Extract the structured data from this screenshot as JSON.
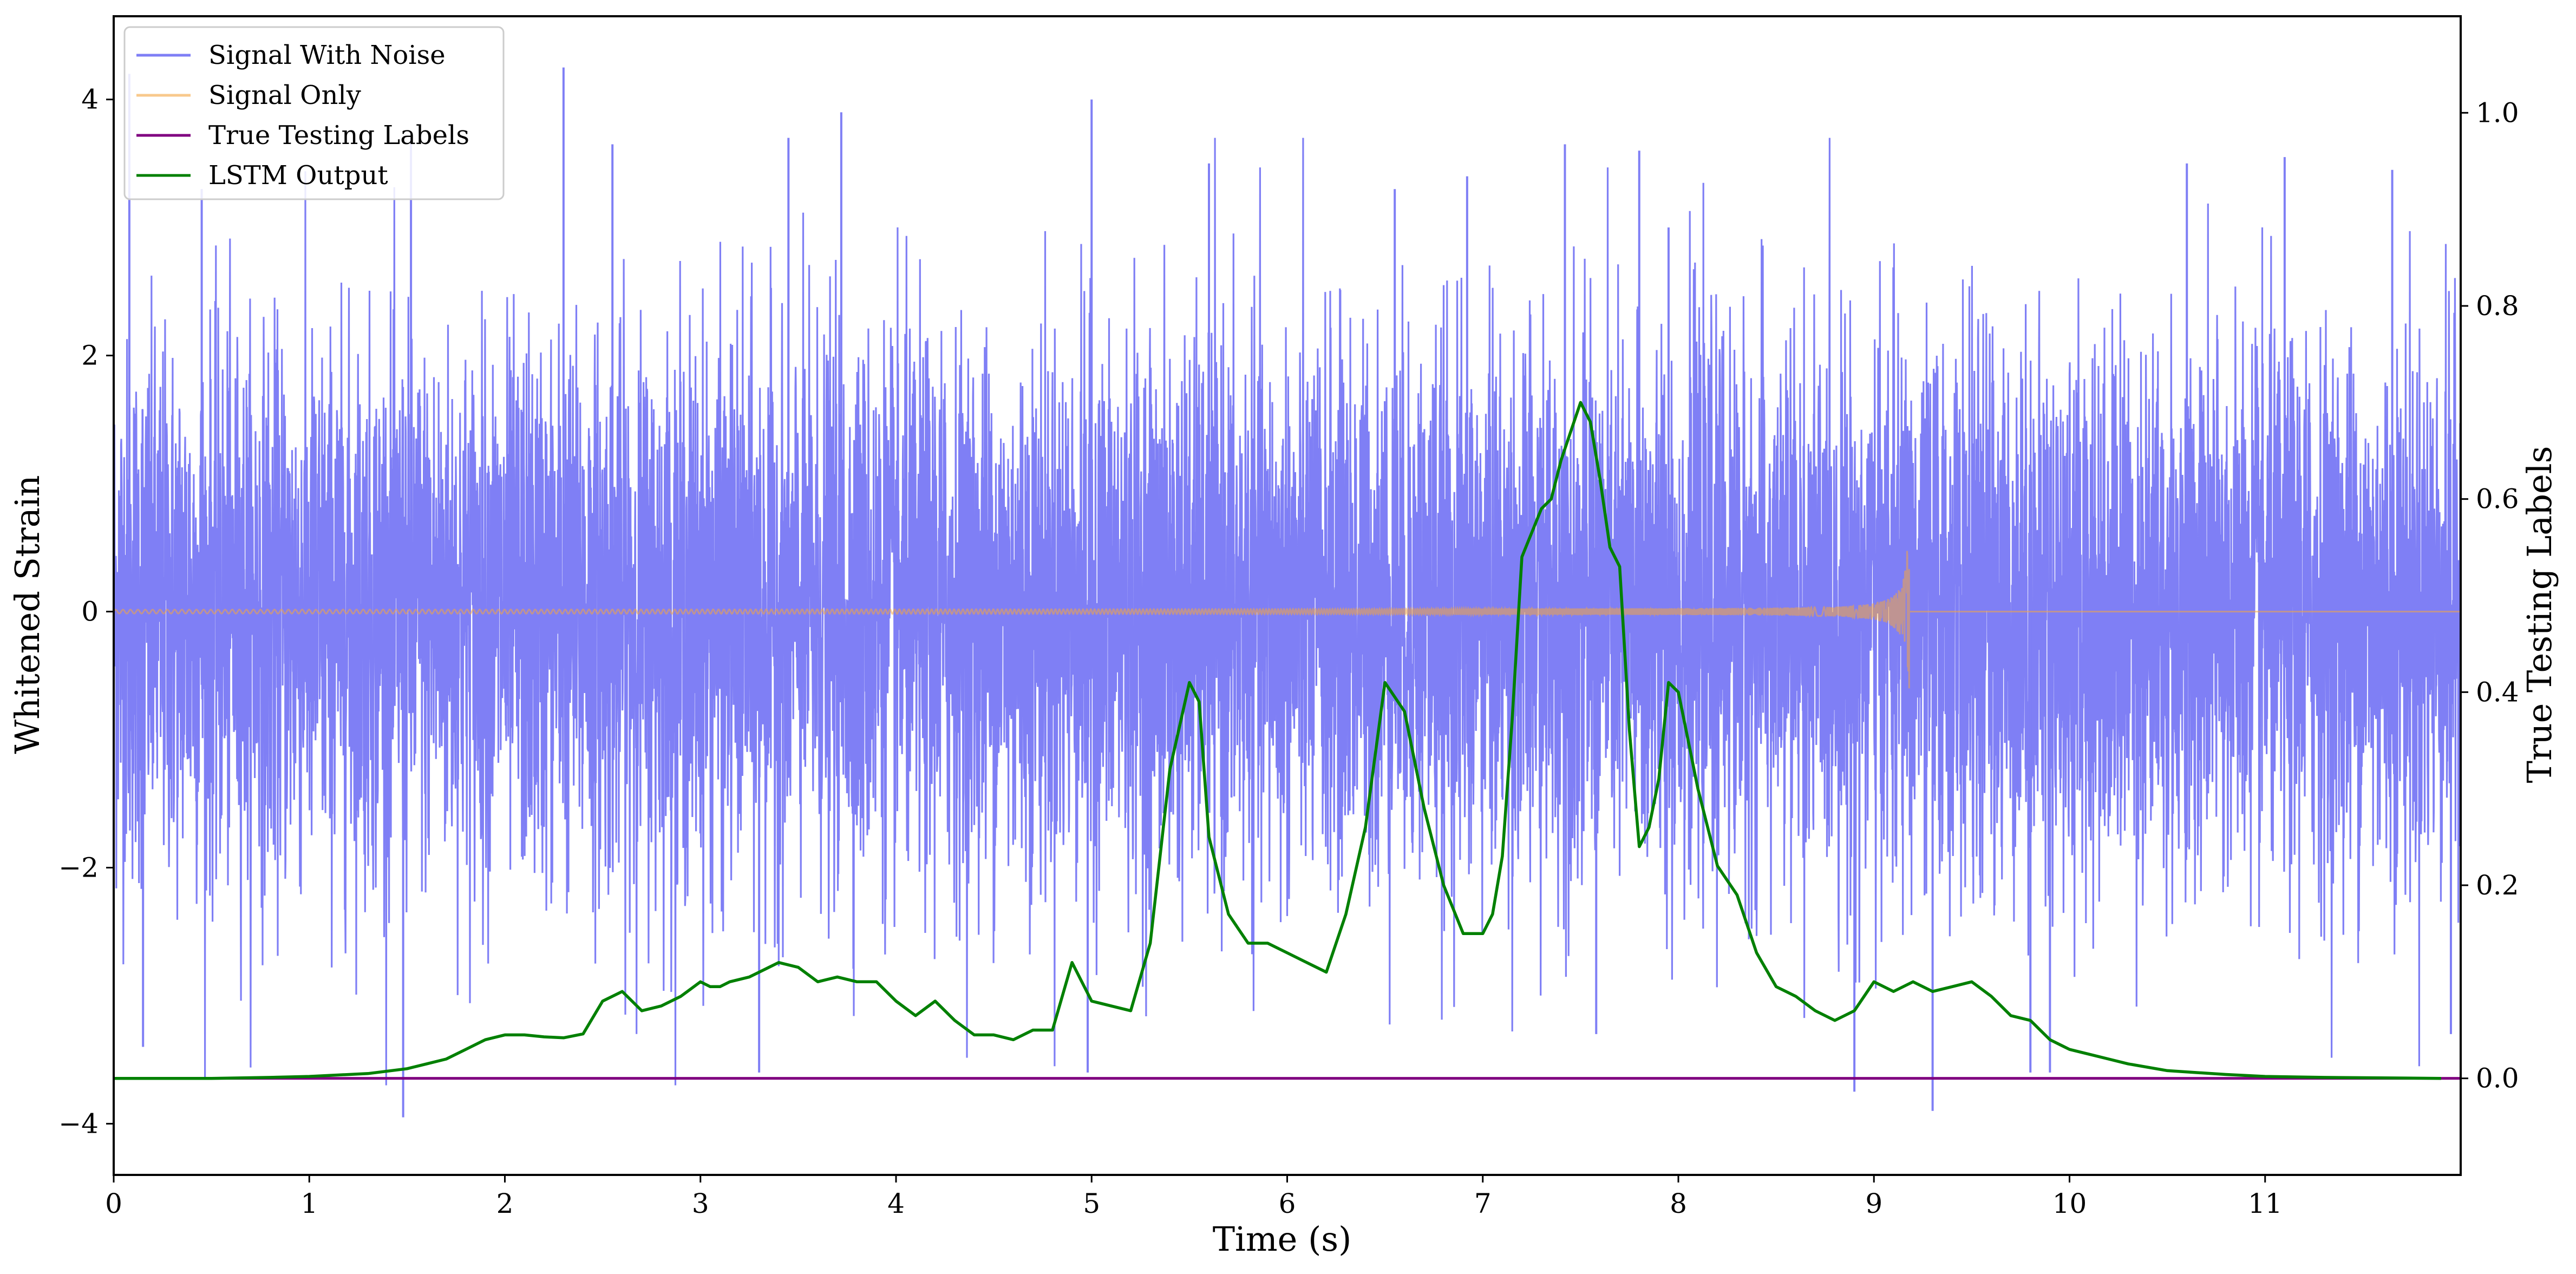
{
  "chart_data": {
    "type": "line",
    "title": "",
    "xlabel": "Time (s)",
    "ylabel_left": "Whitened Strain",
    "ylabel_right": "True Testing Labels",
    "xlim": [
      0,
      12
    ],
    "ylim_left": [
      -4.4,
      4.65
    ],
    "ylim_right": [
      -0.1,
      1.1
    ],
    "xticks": [
      "0",
      "1",
      "2",
      "3",
      "4",
      "5",
      "6",
      "7",
      "8",
      "9",
      "10",
      "11"
    ],
    "yticks_left": [
      "−4",
      "−2",
      "0",
      "2",
      "4"
    ],
    "yticks_right": [
      "0.0",
      "0.2",
      "0.4",
      "0.6",
      "0.8",
      "1.0"
    ],
    "grid": false,
    "legend_position": "top-left",
    "series": [
      {
        "name": "Signal With Noise",
        "color": "#7f7ff5",
        "axis": "left",
        "kind": "noise",
        "std": 1.0,
        "typical_range": [
          -3.7,
          4.3
        ],
        "spikes": [
          {
            "x": 0.08,
            "y": 4.2
          },
          {
            "x": 0.15,
            "y": -3.4
          },
          {
            "x": 0.45,
            "y": 3.3
          },
          {
            "x": 1.48,
            "y": -3.95
          },
          {
            "x": 1.52,
            "y": 3.7
          },
          {
            "x": 2.3,
            "y": 4.25
          },
          {
            "x": 2.55,
            "y": 3.65
          },
          {
            "x": 3.3,
            "y": -3.6
          },
          {
            "x": 3.45,
            "y": 3.7
          },
          {
            "x": 3.72,
            "y": 3.9
          },
          {
            "x": 5.0,
            "y": 4.0
          },
          {
            "x": 4.98,
            "y": -3.6
          },
          {
            "x": 5.6,
            "y": 3.5
          },
          {
            "x": 6.55,
            "y": 3.3
          },
          {
            "x": 6.92,
            "y": 3.4
          },
          {
            "x": 7.42,
            "y": 3.65
          },
          {
            "x": 7.58,
            "y": -3.3
          },
          {
            "x": 7.8,
            "y": 3.6
          },
          {
            "x": 7.95,
            "y": 3.0
          },
          {
            "x": 8.9,
            "y": -3.75
          },
          {
            "x": 9.3,
            "y": -3.9
          },
          {
            "x": 9.8,
            "y": -3.6
          },
          {
            "x": 9.9,
            "y": -3.6
          },
          {
            "x": 10.6,
            "y": 3.5
          },
          {
            "x": 11.1,
            "y": 3.55
          },
          {
            "x": 11.65,
            "y": 3.45
          },
          {
            "x": 11.95,
            "y": -3.3
          }
        ]
      },
      {
        "name": "Signal Only",
        "color": "#f4a640",
        "axis": "left",
        "kind": "chirp",
        "merger_time": 9.18,
        "start_amplitude": 0.02,
        "peak_amplitude": 0.5,
        "min_at_merger": -0.6
      },
      {
        "name": "True Testing Labels",
        "color": "#800080",
        "axis": "right",
        "x": [
          0,
          12
        ],
        "y": [
          0.0,
          0.0
        ]
      },
      {
        "name": "LSTM Output",
        "color": "#008000",
        "axis": "right",
        "x": [
          0.0,
          0.5,
          0.8,
          1.0,
          1.3,
          1.5,
          1.6,
          1.7,
          1.8,
          1.9,
          2.0,
          2.1,
          2.2,
          2.3,
          2.4,
          2.5,
          2.6,
          2.7,
          2.8,
          2.9,
          3.0,
          3.05,
          3.1,
          3.15,
          3.25,
          3.35,
          3.4,
          3.5,
          3.6,
          3.7,
          3.8,
          3.9,
          4.0,
          4.1,
          4.2,
          4.3,
          4.4,
          4.5,
          4.6,
          4.7,
          4.8,
          4.9,
          5.0,
          5.1,
          5.2,
          5.3,
          5.4,
          5.5,
          5.55,
          5.6,
          5.7,
          5.8,
          5.9,
          6.0,
          6.1,
          6.2,
          6.3,
          6.4,
          6.5,
          6.6,
          6.7,
          6.8,
          6.9,
          7.0,
          7.05,
          7.1,
          7.15,
          7.2,
          7.3,
          7.35,
          7.4,
          7.45,
          7.5,
          7.55,
          7.6,
          7.65,
          7.7,
          7.75,
          7.8,
          7.85,
          7.9,
          7.95,
          8.0,
          8.05,
          8.1,
          8.2,
          8.3,
          8.4,
          8.5,
          8.6,
          8.7,
          8.8,
          8.9,
          9.0,
          9.1,
          9.2,
          9.3,
          9.4,
          9.5,
          9.6,
          9.7,
          9.8,
          9.9,
          10.0,
          10.1,
          10.2,
          10.3,
          10.5,
          10.8,
          11.0,
          11.3,
          11.9
        ],
        "y": [
          0.0,
          0.0,
          0.001,
          0.002,
          0.005,
          0.01,
          0.015,
          0.02,
          0.03,
          0.04,
          0.045,
          0.045,
          0.043,
          0.042,
          0.046,
          0.08,
          0.09,
          0.07,
          0.075,
          0.085,
          0.1,
          0.095,
          0.095,
          0.1,
          0.105,
          0.115,
          0.12,
          0.115,
          0.1,
          0.105,
          0.1,
          0.1,
          0.08,
          0.065,
          0.08,
          0.06,
          0.045,
          0.045,
          0.04,
          0.05,
          0.05,
          0.12,
          0.08,
          0.075,
          0.07,
          0.14,
          0.32,
          0.41,
          0.39,
          0.25,
          0.17,
          0.14,
          0.14,
          0.13,
          0.12,
          0.11,
          0.17,
          0.26,
          0.41,
          0.38,
          0.28,
          0.2,
          0.15,
          0.15,
          0.17,
          0.23,
          0.37,
          0.54,
          0.59,
          0.6,
          0.64,
          0.67,
          0.7,
          0.68,
          0.62,
          0.55,
          0.53,
          0.36,
          0.24,
          0.26,
          0.31,
          0.41,
          0.4,
          0.35,
          0.3,
          0.22,
          0.19,
          0.13,
          0.095,
          0.085,
          0.07,
          0.06,
          0.07,
          0.1,
          0.09,
          0.1,
          0.09,
          0.095,
          0.1,
          0.085,
          0.065,
          0.06,
          0.04,
          0.03,
          0.025,
          0.02,
          0.015,
          0.008,
          0.004,
          0.002,
          0.001,
          0.0
        ]
      }
    ]
  }
}
